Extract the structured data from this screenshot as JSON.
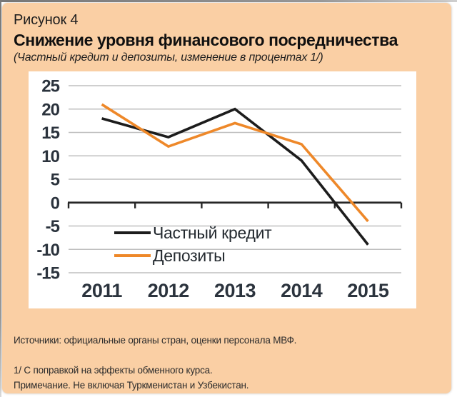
{
  "header": {
    "figure_label": "Рисунок 4",
    "title": "Снижение уровня финансового посредничества",
    "subtitle": "(Частный кредит и депозиты, изменение в процентах 1/)"
  },
  "chart_data": {
    "type": "line",
    "title": "Снижение уровня финансового посредничества",
    "subtitle": "(Частный кредит и депозиты, изменение в процентах 1/)",
    "categories": [
      "2011",
      "2012",
      "2013",
      "2014",
      "2015"
    ],
    "series": [
      {
        "name": "Частный кредит",
        "color": "#1c1c1c",
        "values": [
          18,
          14,
          20,
          9,
          -9
        ]
      },
      {
        "name": "Депозиты",
        "color": "#EE8829",
        "values": [
          21,
          12,
          17,
          12.5,
          -4
        ]
      }
    ],
    "ylim": [
      -15,
      25
    ],
    "yticks": [
      25,
      20,
      15,
      10,
      5,
      0,
      -5,
      -10,
      -15
    ],
    "xlabel": "",
    "ylabel": "",
    "grid": "horizontal",
    "legend_position": "inside-bottom-left"
  },
  "footer": {
    "sources": "Источники:  официальные органы стран, оценки персонала МВФ.",
    "note1": "1/ С поправкой на эффекты обменного курса.",
    "note2": "Примечание. Не включая Туркменистан и Узбекистан."
  },
  "colors": {
    "card_background": "#FACFA4",
    "plot_background": "#FFFFFF",
    "gridline": "#BFBFBF",
    "axis": "#262626",
    "tick_label": "#2B333D",
    "series_private_credit": "#1C1C1C",
    "series_deposits": "#EE8829"
  }
}
